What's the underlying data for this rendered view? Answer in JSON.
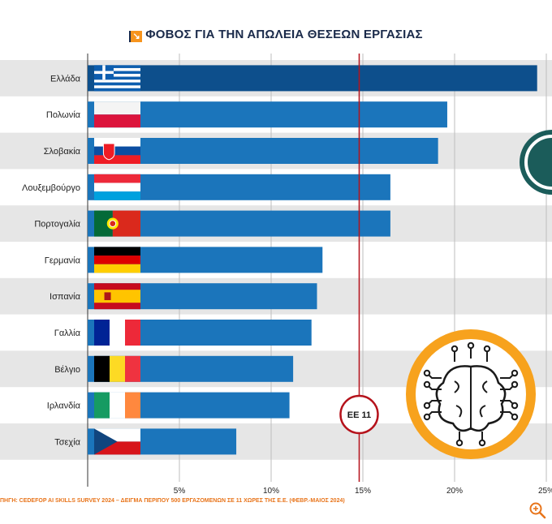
{
  "title": "ΦΟΒΟΣ ΓΙΑ ΤΗΝ ΑΠΩΛΕΙΑ ΘΕΣΕΩΝ ΕΡΓΑΣΙΑΣ",
  "source": "ΠΗΓΗ: CEDEFOP AI SKILLS SURVEY 2024 – ΔΕΙΓΜΑ ΠΕΡΙΠΟΥ 500 ΕΡΓΑΖΟΜΕΝΩΝ ΣΕ 11 ΧΩΡΕΣ ΤΗΣ Ε.Ε. (ΦΕΒΡ.-ΜΑΪΟΣ 2024)",
  "icons": {
    "title": "arrow-icon",
    "zoom": "zoom-in-icon",
    "brain": "brain-circuit-icon"
  },
  "colors": {
    "bar_highlight": "#0d4f8c",
    "bar": "#1b75bb",
    "row_shade": "#e6e6e6",
    "reference_line": "#b5121b",
    "accent": "#f7a21d",
    "source_text": "#e8741a"
  },
  "chart_data": {
    "type": "bar",
    "orientation": "horizontal",
    "title": "ΦΟΒΟΣ ΓΙΑ ΤΗΝ ΑΠΩΛΕΙΑ ΘΕΣΕΩΝ ΕΡΓΑΣΙΑΣ",
    "categories": [
      "Ελλάδα",
      "Πολωνία",
      "Σλοβακία",
      "Λουξεμβούργο",
      "Πορτογαλία",
      "Γερμανία",
      "Ισπανία",
      "Γαλλία",
      "Βέλγιο",
      "Ιρλανδία",
      "Τσεχία"
    ],
    "values": [
      24.5,
      19.6,
      19.1,
      16.5,
      16.5,
      12.8,
      12.5,
      12.2,
      11.2,
      11.0,
      8.1
    ],
    "flags": [
      "gr",
      "pl",
      "sk",
      "lu",
      "pt",
      "de",
      "es",
      "fr",
      "be",
      "ie",
      "cz"
    ],
    "highlight": "Ελλάδα",
    "xlim": [
      0,
      25
    ],
    "xticks": [
      5,
      10,
      15,
      20,
      25
    ],
    "xtick_labels": [
      "5%",
      "10%",
      "15%",
      "20%",
      "25%"
    ],
    "grid": true,
    "reference": {
      "label": "ΕΕ 11",
      "value": 14.8
    }
  }
}
